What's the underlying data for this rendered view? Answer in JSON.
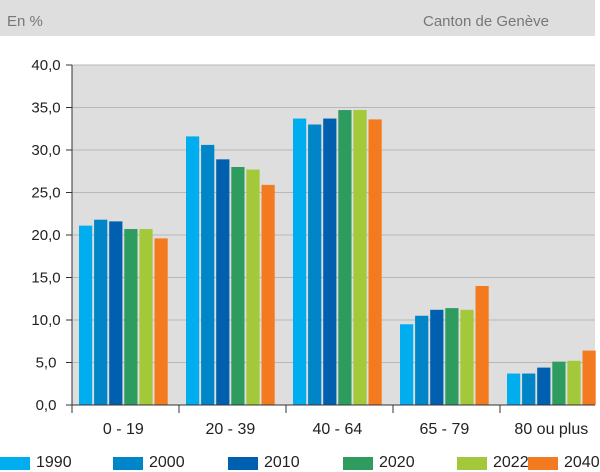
{
  "header": {
    "unit_label": "En %",
    "source_label": "Canton de Genève"
  },
  "chart_data": {
    "type": "bar",
    "title": "",
    "xlabel": "",
    "ylabel": "En %",
    "ylim": [
      0,
      40
    ],
    "yticks": [
      "0,0",
      "5,0",
      "10,0",
      "15,0",
      "20,0",
      "25,0",
      "30,0",
      "35,0",
      "40,0"
    ],
    "ytick_values": [
      0,
      5,
      10,
      15,
      20,
      25,
      30,
      35,
      40
    ],
    "grid": true,
    "legend_position": "bottom",
    "categories": [
      "0 - 19",
      "20 - 39",
      "40 - 64",
      "65 - 79",
      "80 ou plus"
    ],
    "series": [
      {
        "name": "1990",
        "color": "#00aeef",
        "values": [
          21.1,
          31.6,
          33.7,
          9.5,
          3.7
        ]
      },
      {
        "name": "2000",
        "color": "#0085c8",
        "values": [
          21.8,
          30.6,
          33.0,
          10.5,
          3.7
        ]
      },
      {
        "name": "2010",
        "color": "#005fae",
        "values": [
          21.6,
          28.9,
          33.7,
          11.2,
          4.4
        ]
      },
      {
        "name": "2020",
        "color": "#2e9b5f",
        "values": [
          20.7,
          28.0,
          34.7,
          11.4,
          5.1
        ]
      },
      {
        "name": "2022",
        "color": "#a3c83a",
        "values": [
          20.7,
          27.7,
          34.7,
          11.2,
          5.2
        ]
      },
      {
        "name": "2040",
        "color": "#f47a20",
        "values": [
          19.6,
          25.9,
          33.6,
          14.0,
          6.4
        ]
      }
    ]
  }
}
